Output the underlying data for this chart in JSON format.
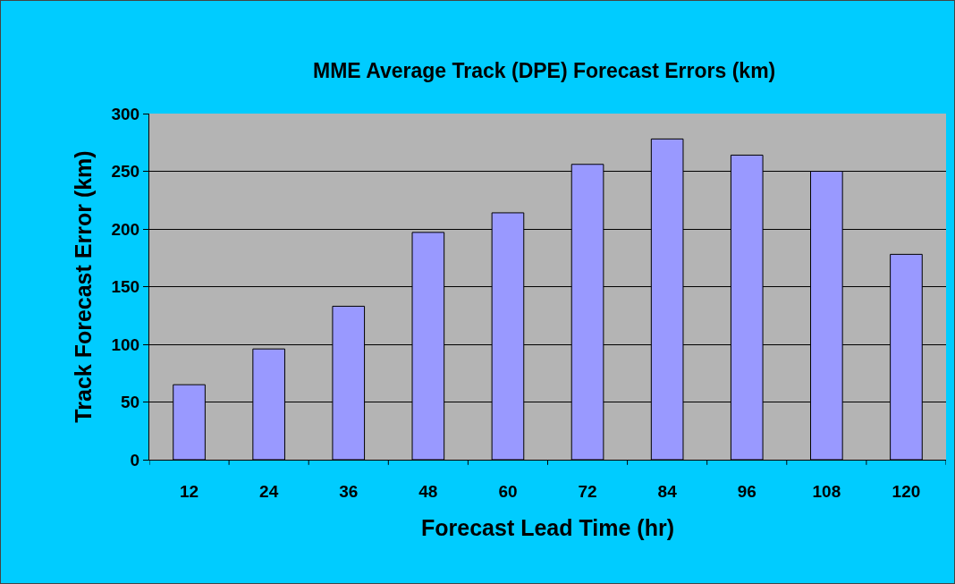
{
  "chart_data": {
    "type": "bar",
    "title": "MME Average Track (DPE) Forecast Errors (km)",
    "xlabel": "Forecast Lead Time (hr)",
    "ylabel": "Track Forecast Error (km)",
    "categories": [
      "12",
      "24",
      "36",
      "48",
      "60",
      "72",
      "84",
      "96",
      "108",
      "120"
    ],
    "values": [
      65,
      96,
      133,
      197,
      214,
      256,
      278,
      264,
      250,
      178
    ],
    "color": "#9999ff",
    "ylim": [
      0,
      300
    ],
    "yticks": [
      0,
      50,
      100,
      150,
      200,
      250,
      300
    ],
    "grid": "y",
    "legend": false
  }
}
